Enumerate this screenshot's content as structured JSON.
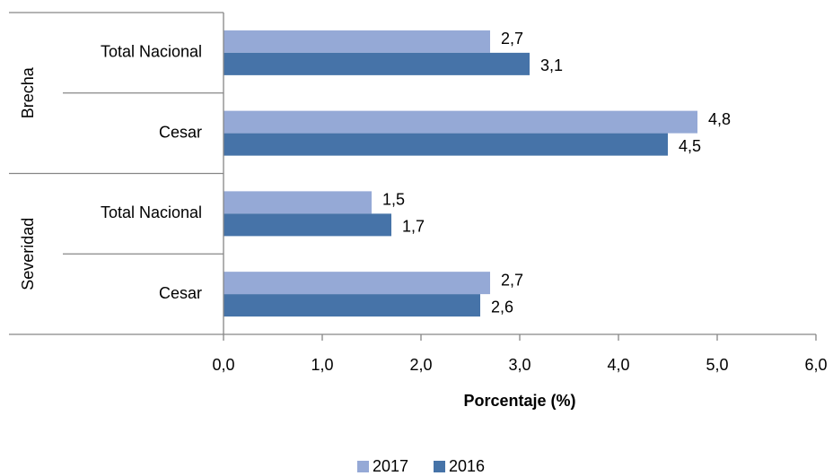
{
  "chart_data": {
    "type": "bar",
    "orientation": "horizontal",
    "groups": [
      "Brecha",
      "Severidad"
    ],
    "categories": [
      "Total Nacional",
      "Cesar",
      "Total Nacional",
      "Cesar"
    ],
    "series": [
      {
        "name": "2017",
        "color": "#95a9d6",
        "values": [
          2.7,
          4.8,
          1.5,
          2.7
        ],
        "value_labels": [
          "2,7",
          "4,8",
          "1,5",
          "2,7"
        ]
      },
      {
        "name": "2016",
        "color": "#4673a8",
        "values": [
          3.1,
          4.5,
          1.7,
          2.6
        ],
        "value_labels": [
          "3,1",
          "4,5",
          "1,7",
          "2,6"
        ]
      }
    ],
    "xlabel": "Porcentaje (%)",
    "xlim": [
      0,
      6
    ],
    "xticks": [
      {
        "value": 0,
        "label": "0,0"
      },
      {
        "value": 1,
        "label": "1,0"
      },
      {
        "value": 2,
        "label": "2,0"
      },
      {
        "value": 3,
        "label": "3,0"
      },
      {
        "value": 4,
        "label": "4,0"
      },
      {
        "value": 5,
        "label": "5,0"
      },
      {
        "value": 6,
        "label": "6,0"
      }
    ],
    "legend": "bottom"
  }
}
